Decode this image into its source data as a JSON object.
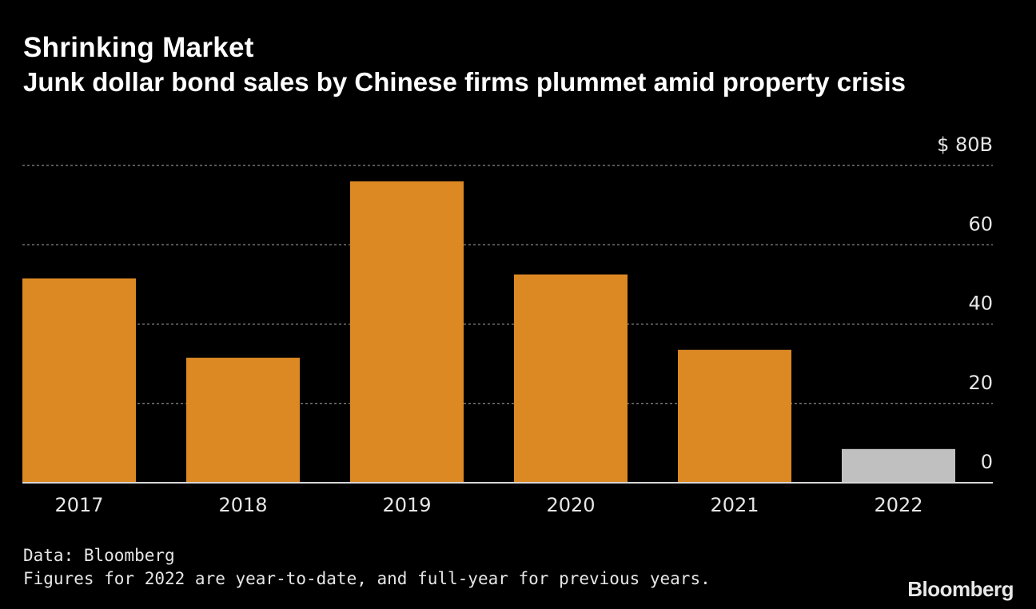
{
  "header": {
    "title": "Shrinking Market",
    "subtitle": "Junk dollar bond sales by Chinese firms plummet amid property crisis"
  },
  "chart_data": {
    "type": "bar",
    "categories": [
      "2017",
      "2018",
      "2019",
      "2020",
      "2021",
      "2022"
    ],
    "values": [
      51.5,
      31.5,
      76,
      52.5,
      33.5,
      8.5
    ],
    "bar_colors": [
      "#dc8823",
      "#dc8823",
      "#dc8823",
      "#dc8823",
      "#dc8823",
      "#c0c0c0"
    ],
    "ylim": [
      0,
      80
    ],
    "yticks": [
      0,
      20,
      40,
      60,
      80
    ],
    "ytick_labels": [
      "0",
      "20",
      "40",
      "60",
      "$ 80B"
    ],
    "grid": true,
    "title": "Shrinking Market",
    "xlabel": "",
    "ylabel": ""
  },
  "footer": {
    "source": "Data: Bloomberg",
    "note": "Figures for 2022 are year-to-date, and full-year for previous years.",
    "brand": "Bloomberg"
  },
  "colors": {
    "background": "#000000",
    "bar": "#dc8823",
    "bar_partial": "#c0c0c0",
    "gridline": "#8a8a8a",
    "baseline": "#d8d8d8",
    "label": "#e6e6e6"
  }
}
